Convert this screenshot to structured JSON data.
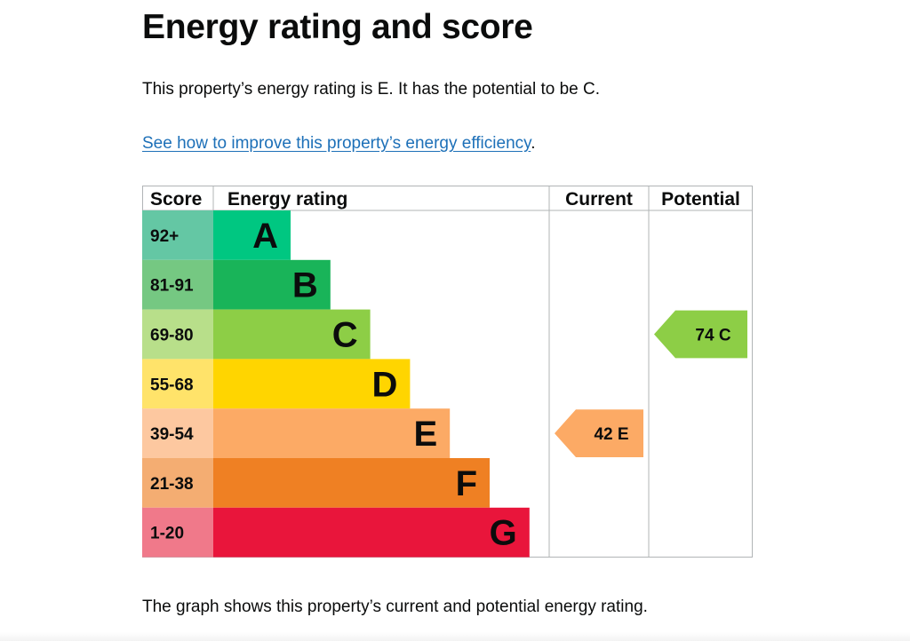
{
  "page": {
    "title": "Energy rating and score",
    "summary": "This property’s energy rating is E. It has the potential to be C.",
    "improve_link": "See how to improve this property’s energy efficiency",
    "improve_suffix": ".",
    "footer": "The graph shows this property’s current and potential energy rating."
  },
  "chart_data": {
    "type": "table",
    "headers": {
      "score": "Score",
      "rating": "Energy rating",
      "current": "Current",
      "potential": "Potential"
    },
    "bands": [
      {
        "letter": "A",
        "range": "92+",
        "band_color": "#00c781",
        "score_color": "#64c7a4"
      },
      {
        "letter": "B",
        "range": "81-91",
        "band_color": "#19b459",
        "score_color": "#75c882"
      },
      {
        "letter": "C",
        "range": "69-80",
        "band_color": "#8dce46",
        "score_color": "#b8df8a"
      },
      {
        "letter": "D",
        "range": "55-68",
        "band_color": "#ffd500",
        "score_color": "#ffe36a"
      },
      {
        "letter": "E",
        "range": "39-54",
        "band_color": "#fcaa65",
        "score_color": "#fdc8a0"
      },
      {
        "letter": "F",
        "range": "21-38",
        "band_color": "#ef8023",
        "score_color": "#f4ad72"
      },
      {
        "letter": "G",
        "range": "1-20",
        "band_color": "#e9153b",
        "score_color": "#f0798a"
      }
    ],
    "current": {
      "score": 42,
      "letter": "E",
      "label": "42  E",
      "color": "#fcaa65"
    },
    "potential": {
      "score": 74,
      "letter": "C",
      "label": "74  C",
      "color": "#8dce46"
    }
  }
}
